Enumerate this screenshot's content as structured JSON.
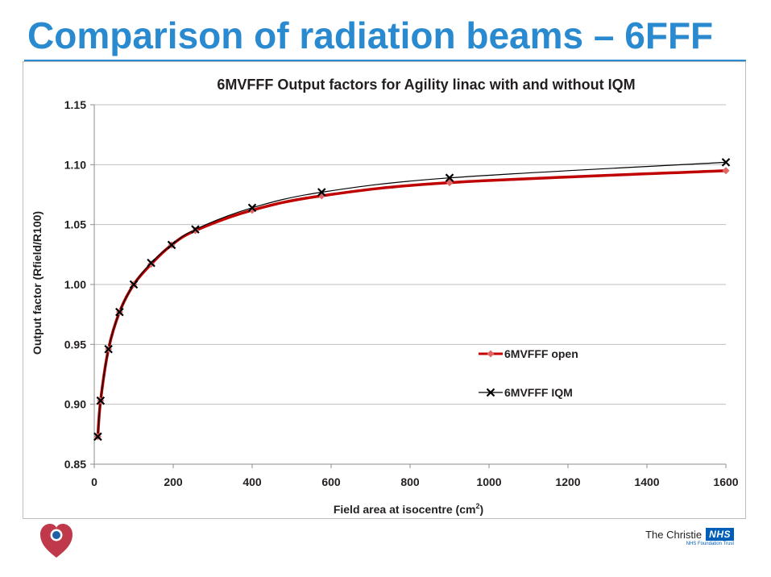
{
  "slide": {
    "title": "Comparison of radiation beams – 6FFF"
  },
  "footer": {
    "org_name": "The Christie",
    "nhs_badge": "NHS",
    "org_subtitle": "NHS Foundation Trust",
    "logo_icon": "heart-logo-icon"
  },
  "colors": {
    "title": "#2a8ad0",
    "series_open_line": "#c00000",
    "series_open_marker": "#e06666",
    "series_iqm": "#000000",
    "grid": "#bfbfbf",
    "nhs_blue": "#005eb8",
    "logo_red": "#c0394b",
    "logo_blue": "#1f5fa8"
  },
  "chart_data": {
    "type": "line",
    "title": "6MVFFF Output factors for Agility linac with and without IQM",
    "xlabel": "Field area at isocentre (cm",
    "xlabel_superscript": "2",
    "xlabel_suffix": ")",
    "ylabel": "Output factor (Rfield/R100)",
    "xlim": [
      0,
      1600
    ],
    "ylim": [
      0.85,
      1.15
    ],
    "xticks": [
      "0",
      "200",
      "400",
      "600",
      "800",
      "1000",
      "1200",
      "1400",
      "1600"
    ],
    "xtick_values": [
      0,
      200,
      400,
      600,
      800,
      1000,
      1200,
      1400,
      1600
    ],
    "yticks": [
      "0.85",
      "0.90",
      "0.95",
      "1.00",
      "1.05",
      "1.10",
      "1.15"
    ],
    "ytick_values": [
      0.85,
      0.9,
      0.95,
      1.0,
      1.05,
      1.1,
      1.15
    ],
    "grid": "horizontal",
    "legend_position": "center-right",
    "series": [
      {
        "name": "6MVFFF open",
        "x": [
          9,
          16,
          36,
          64,
          100,
          144,
          196,
          256,
          400,
          576,
          900,
          1600
        ],
        "y": [
          0.873,
          0.903,
          0.946,
          0.977,
          1.0,
          1.017,
          1.033,
          1.045,
          1.062,
          1.074,
          1.085,
          1.095
        ]
      },
      {
        "name": "6MVFFF IQM",
        "x": [
          9,
          16,
          36,
          64,
          100,
          144,
          196,
          256,
          400,
          576,
          900,
          1600
        ],
        "y": [
          0.873,
          0.903,
          0.946,
          0.977,
          1.0,
          1.018,
          1.033,
          1.046,
          1.064,
          1.077,
          1.089,
          1.102
        ]
      }
    ]
  }
}
